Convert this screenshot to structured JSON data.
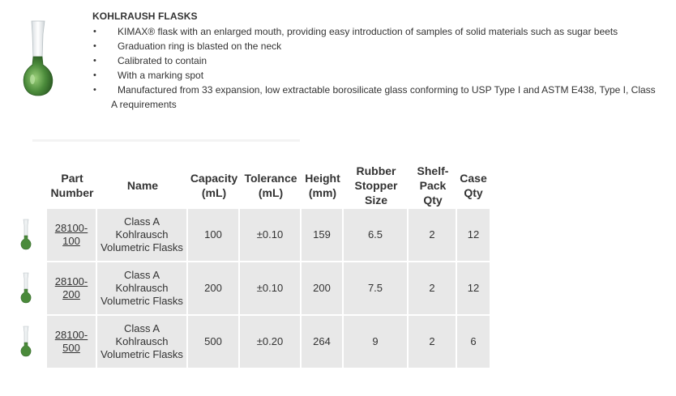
{
  "product": {
    "title": "KOHLRAUSH FLASKS",
    "features": [
      "KIMAX® flask with an enlarged mouth, providing easy introduction of samples of solid materials such as sugar beets",
      "Graduation ring is blasted on the neck",
      "Calibrated to contain",
      "With a marking spot"
    ],
    "feature_last_line1": "Manufactured from 33 expansion, low extractable borosilicate glass conforming to USP Type I and ASTM E438, Type I, Class",
    "feature_last_line2": "A requirements",
    "bullet": "•"
  },
  "table": {
    "headers": {
      "part_number": [
        "Part",
        "Number"
      ],
      "name": "Name",
      "capacity": [
        "Capacity",
        "(mL)"
      ],
      "tolerance": [
        "Tolerance",
        "(mL)"
      ],
      "height": [
        "Height",
        "(mm)"
      ],
      "stopper": [
        "Rubber",
        "Stopper",
        "Size"
      ],
      "shelf_pack": [
        "Shelf-",
        "Pack",
        "Qty"
      ],
      "case": [
        "Case",
        "Qty"
      ]
    },
    "rows": [
      {
        "part": [
          "28100-",
          "100"
        ],
        "name": [
          "Class A",
          "Kohlrausch",
          "Volumetric Flasks"
        ],
        "capacity": "100",
        "tolerance": "±0.10",
        "height": "159",
        "stopper": "6.5",
        "shelf_pack": "2",
        "case": "12"
      },
      {
        "part": [
          "28100-",
          "200"
        ],
        "name": [
          "Class A",
          "Kohlrausch",
          "Volumetric Flasks"
        ],
        "capacity": "200",
        "tolerance": "±0.10",
        "height": "200",
        "stopper": "7.5",
        "shelf_pack": "2",
        "case": "12"
      },
      {
        "part": [
          "28100-",
          "500"
        ],
        "name": [
          "Class A",
          "Kohlrausch",
          "Volumetric Flasks"
        ],
        "capacity": "500",
        "tolerance": "±0.20",
        "height": "264",
        "stopper": "9",
        "shelf_pack": "2",
        "case": "6"
      }
    ]
  },
  "colors": {
    "flask_green": "#4a8a3a",
    "row_bg": "#e8e8e8"
  },
  "icons": {
    "hero": "flask-image",
    "thumb": "flask-thumbnail"
  }
}
